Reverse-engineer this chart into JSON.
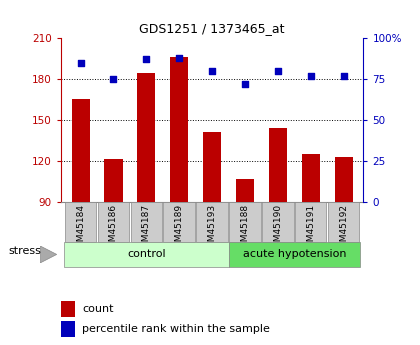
{
  "title": "GDS1251 / 1373465_at",
  "samples": [
    "GSM45184",
    "GSM45186",
    "GSM45187",
    "GSM45189",
    "GSM45193",
    "GSM45188",
    "GSM45190",
    "GSM45191",
    "GSM45192"
  ],
  "counts": [
    165,
    121,
    184,
    196,
    141,
    107,
    144,
    125,
    123
  ],
  "percentiles": [
    85,
    75,
    87,
    88,
    80,
    72,
    80,
    77,
    77
  ],
  "ylim_left": [
    90,
    210
  ],
  "ylim_right": [
    0,
    100
  ],
  "yticks_left": [
    90,
    120,
    150,
    180,
    210
  ],
  "yticks_right": [
    0,
    25,
    50,
    75,
    100
  ],
  "ytick_labels_right": [
    "0",
    "25",
    "50",
    "75",
    "100%"
  ],
  "n_control": 5,
  "n_acute": 4,
  "bar_color": "#bb0000",
  "dot_color": "#0000bb",
  "control_bg": "#ccffcc",
  "acute_bg": "#66dd66",
  "tick_bg": "#cccccc",
  "bar_width": 0.55,
  "legend_count_label": "count",
  "legend_pct_label": "percentile rank within the sample",
  "stress_label": "stress",
  "control_label": "control",
  "acute_label": "acute hypotension",
  "grid_lines": [
    120,
    150,
    180
  ],
  "title_fontsize": 9,
  "axis_fontsize": 7.5,
  "label_fontsize": 6.5,
  "group_fontsize": 8
}
